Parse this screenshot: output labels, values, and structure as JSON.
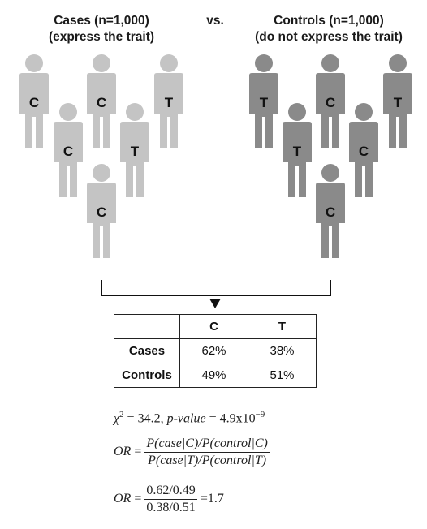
{
  "header": {
    "cases_title": "Cases (n=1,000)",
    "cases_sub": "(express the trait)",
    "vs": "vs.",
    "controls_title": "Controls (n=1,000)",
    "controls_sub": "(do not express the trait)"
  },
  "colors": {
    "cases_figure": "#c4c4c4",
    "controls_figure": "#8a8a8a",
    "line": "#111111"
  },
  "icons": [
    "person-icon",
    "down-arrow-icon"
  ],
  "cases_figures": [
    "C",
    "C",
    "C",
    "T",
    "T",
    "C"
  ],
  "controls_figures": [
    "T",
    "T",
    "C",
    "C",
    "T",
    "C"
  ],
  "table": {
    "col_headers": [
      "C",
      "T"
    ],
    "rows": [
      {
        "label": "Cases",
        "values": [
          "62%",
          "38%"
        ]
      },
      {
        "label": "Controls",
        "values": [
          "49%",
          "51%"
        ]
      }
    ]
  },
  "stats": {
    "chi_label": "χ",
    "chi_exp": "2",
    "chi_rest": " = 34.2, ",
    "pvalue_label": "p-value",
    "pvalue_rest": " = 4.9x10",
    "pvalue_exp": "−9",
    "or_label": "OR",
    "eq": " = ",
    "or_formula_num": "P(case|C)/P(control|C)",
    "or_formula_den": "P(case|T)/P(control|T)",
    "or_value_num": "0.62/0.49",
    "or_value_den": "0.38/0.51",
    "or_result": "=1.7"
  }
}
